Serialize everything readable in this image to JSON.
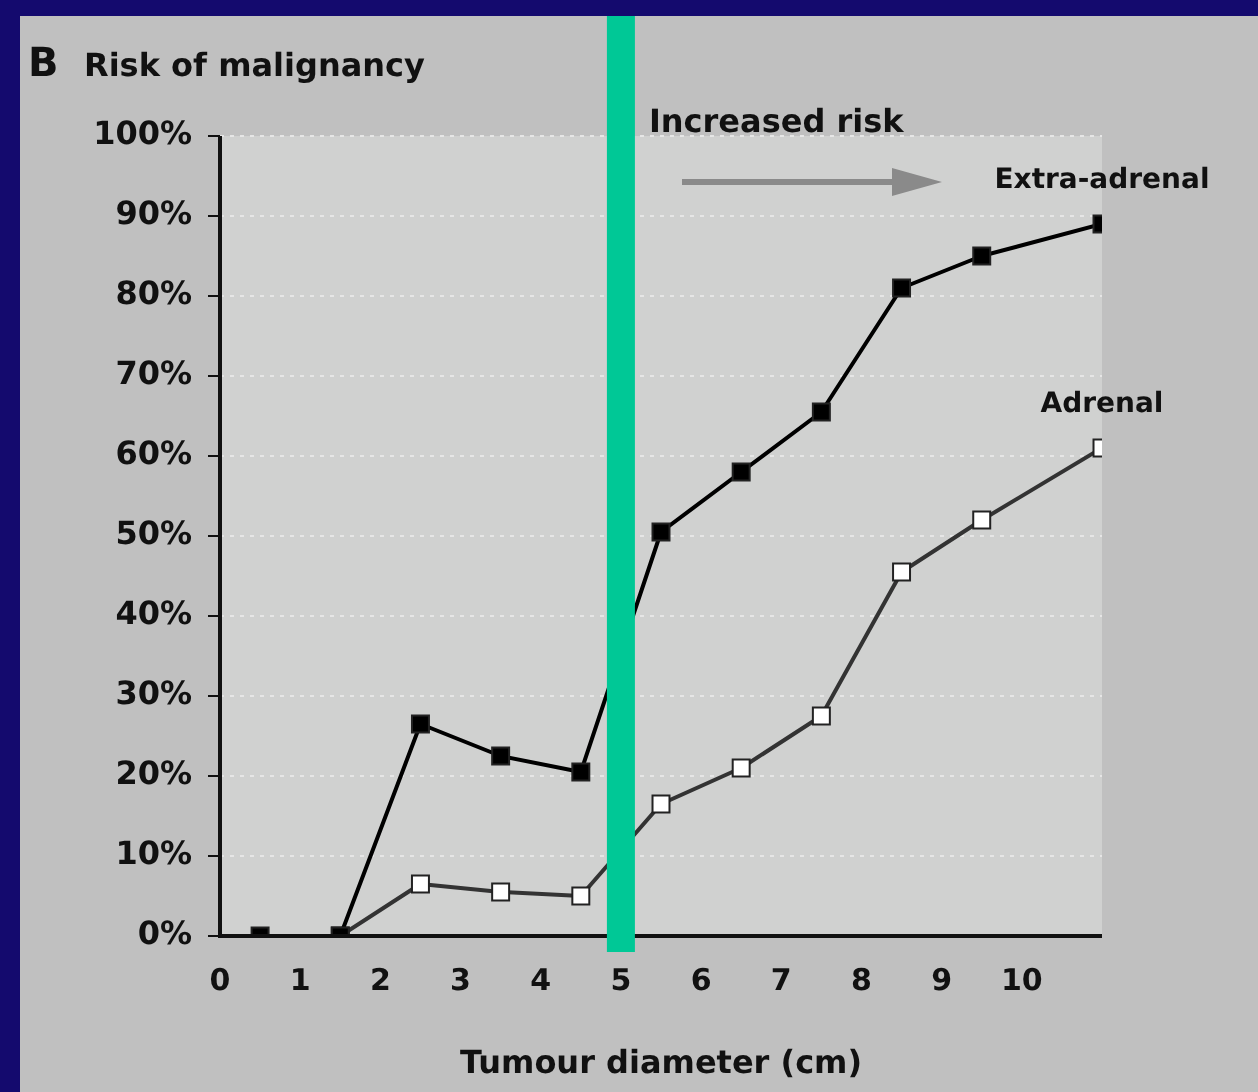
{
  "chart_data": {
    "type": "line",
    "title": "B",
    "ylabel": "Risk of malignancy",
    "xlabel": "Tumour diameter (cm)",
    "series": [
      {
        "name": "Extra-adrenal",
        "color": "#000000",
        "x": [
          0.5,
          1.5,
          2.5,
          3.5,
          4.5,
          5.5,
          6.5,
          7.5,
          8.5,
          9.5,
          11
        ],
        "values": [
          0,
          0,
          26.5,
          22.5,
          20.5,
          50.5,
          58,
          65.5,
          81,
          85,
          89
        ]
      },
      {
        "name": "Adrenal",
        "color": "#ffffff",
        "x": [
          1.5,
          2.5,
          3.5,
          4.5,
          5.5,
          6.5,
          7.5,
          8.5,
          9.5,
          11
        ],
        "values": [
          0,
          6.5,
          5.5,
          5,
          16.5,
          21,
          27.5,
          45.5,
          52,
          61
        ]
      }
    ],
    "xlim": [
      0,
      11
    ],
    "xticks": [
      0,
      1,
      2,
      3,
      4,
      5,
      6,
      7,
      8,
      9,
      10
    ],
    "ylim": [
      0,
      100
    ],
    "yticks": [
      {
        "value": 0,
        "label": "0%"
      },
      {
        "value": 10,
        "label": "10%"
      },
      {
        "value": 20,
        "label": "20%"
      },
      {
        "value": 30,
        "label": "30%"
      },
      {
        "value": 40,
        "label": "40%"
      },
      {
        "value": 50,
        "label": "50%"
      },
      {
        "value": 60,
        "label": "60%"
      },
      {
        "value": 70,
        "label": "70%"
      },
      {
        "value": 80,
        "label": "80%"
      },
      {
        "value": 90,
        "label": "90%"
      },
      {
        "value": 100,
        "label": "100%"
      }
    ],
    "ref_lines": [
      {
        "axis": "x",
        "value": 5,
        "color": "#00c896"
      }
    ],
    "annotations": [
      "Increased risk"
    ],
    "grid": "y",
    "legend": false,
    "marker": "square",
    "line_style": "solid"
  }
}
